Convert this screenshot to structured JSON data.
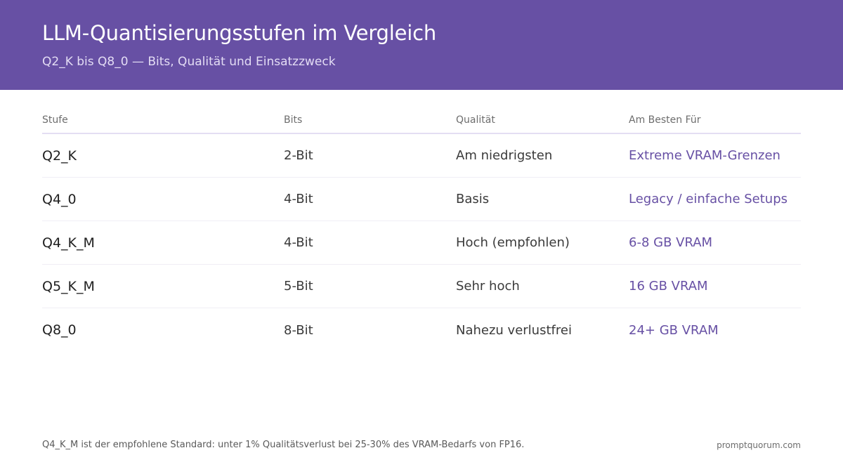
{
  "header": {
    "title": "LLM-Quantisierungsstufen im Vergleich",
    "subtitle": "Q2_K bis Q8_0 — Bits, Qualität und Einsatzzweck"
  },
  "table": {
    "columns": [
      "Stufe",
      "Bits",
      "Qualität",
      "Am Besten Für"
    ],
    "rows": [
      [
        "Q2_K",
        "2-Bit",
        "Am niedrigsten",
        "Extreme VRAM-Grenzen"
      ],
      [
        "Q4_0",
        "4-Bit",
        "Basis",
        "Legacy / einfache Setups"
      ],
      [
        "Q4_K_M",
        "4-Bit",
        "Hoch (empfohlen)",
        "6-8 GB VRAM"
      ],
      [
        "Q5_K_M",
        "5-Bit",
        "Sehr hoch",
        "16 GB VRAM"
      ],
      [
        "Q8_0",
        "8-Bit",
        "Nahezu verlustfrei",
        "24+ GB VRAM"
      ]
    ]
  },
  "footer": {
    "note": "Q4_K_M ist der empfohlene Standard: unter 1% Qualitätsverlust bei 25-30% des VRAM-Bedarfs von FP16.",
    "brand": "promptquorum.com"
  },
  "colors": {
    "header_bg": "#6750a4",
    "accent": "#6750a4"
  }
}
